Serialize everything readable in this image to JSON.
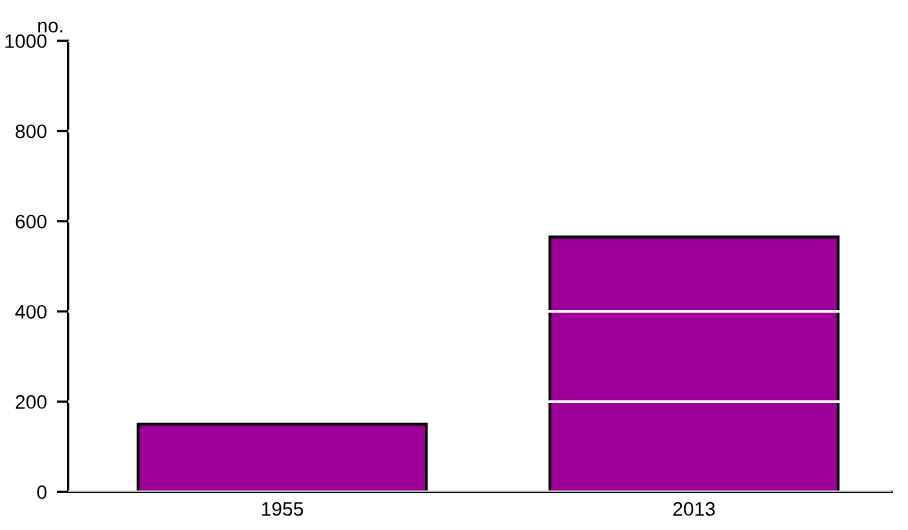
{
  "chart_data": {
    "type": "bar",
    "ylabel": "no.",
    "categories": [
      "1955",
      "2013"
    ],
    "values": [
      150,
      565
    ],
    "color": "#a0009a",
    "ylim": [
      0,
      1000
    ],
    "yticks": [
      0,
      200,
      400,
      600,
      800,
      1000
    ],
    "grid": "y"
  }
}
